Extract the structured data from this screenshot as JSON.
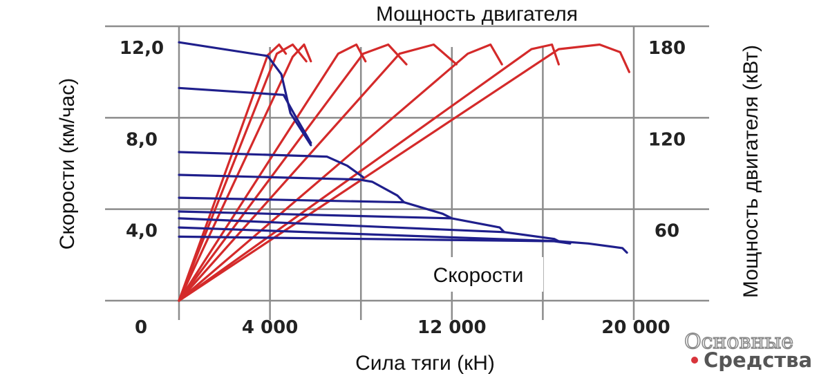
{
  "chart_data": {
    "type": "line",
    "title": "Мощность двигателя",
    "xlabel": "Сила тяги (кН)",
    "ylabel": "Скорости (км/час)",
    "y2label": "Мощность двигателя (кВт)",
    "annotation": "Скорости",
    "x_ticks": [
      {
        "value": 0,
        "label": "0"
      },
      {
        "value": 4000,
        "label": "4 000"
      },
      {
        "value": 12000,
        "label": "12 000"
      },
      {
        "value": 20000,
        "label": "20 000"
      }
    ],
    "x_grid": [
      0,
      4000,
      8000,
      12000,
      16000,
      20000
    ],
    "y_ticks": [
      {
        "value": 4,
        "label": "4,0"
      },
      {
        "value": 8,
        "label": "8,0"
      },
      {
        "value": 12,
        "label": "12,0"
      }
    ],
    "y2_ticks": [
      {
        "value": 60,
        "label": "60"
      },
      {
        "value": 120,
        "label": "120"
      },
      {
        "value": 180,
        "label": "180"
      }
    ],
    "xlim": [
      0,
      20000
    ],
    "ylim": [
      0,
      12
    ],
    "y2lim": [
      0,
      180
    ],
    "grid": true,
    "speed_color": "#1f1f8c",
    "power_color": "#d42a2a",
    "speed_series": [
      {
        "values": [
          [
            0,
            11.3
          ],
          [
            3900,
            10.7
          ],
          [
            4500,
            9.9
          ],
          [
            4900,
            8.2
          ],
          [
            5800,
            6.8
          ]
        ]
      },
      {
        "values": [
          [
            0,
            9.3
          ],
          [
            4600,
            9.0
          ],
          [
            5100,
            8.1
          ],
          [
            5800,
            6.9
          ]
        ]
      },
      {
        "values": [
          [
            0,
            6.5
          ],
          [
            6500,
            6.3
          ],
          [
            7400,
            5.9
          ],
          [
            8100,
            5.4
          ]
        ]
      },
      {
        "values": [
          [
            0,
            5.5
          ],
          [
            7900,
            5.3
          ],
          [
            8500,
            5.2
          ],
          [
            9600,
            4.6
          ],
          [
            9900,
            4.3
          ]
        ]
      },
      {
        "values": [
          [
            0,
            4.5
          ],
          [
            9900,
            4.3
          ],
          [
            11600,
            3.8
          ],
          [
            12000,
            3.6
          ]
        ]
      },
      {
        "values": [
          [
            0,
            3.9
          ],
          [
            12000,
            3.6
          ],
          [
            14100,
            3.2
          ],
          [
            14300,
            3.0
          ]
        ]
      },
      {
        "values": [
          [
            0,
            3.6
          ],
          [
            14300,
            3.0
          ],
          [
            16500,
            2.7
          ],
          [
            16700,
            2.6
          ]
        ]
      },
      {
        "values": [
          [
            0,
            3.2
          ],
          [
            16700,
            2.6
          ],
          [
            18000,
            2.5
          ],
          [
            19500,
            2.3
          ],
          [
            19700,
            2.1
          ]
        ]
      },
      {
        "values": [
          [
            0,
            2.8
          ],
          [
            16500,
            2.6
          ],
          [
            17200,
            2.5
          ]
        ]
      }
    ],
    "power_series": [
      {
        "values": [
          [
            0,
            0
          ],
          [
            3900,
            161
          ],
          [
            4400,
            168
          ],
          [
            4700,
            162
          ]
        ]
      },
      {
        "values": [
          [
            0,
            0
          ],
          [
            4300,
            162
          ],
          [
            5000,
            168
          ],
          [
            5600,
            157
          ]
        ]
      },
      {
        "values": [
          [
            0,
            0
          ],
          [
            5000,
            160
          ],
          [
            5500,
            168
          ],
          [
            5800,
            157
          ]
        ]
      },
      {
        "values": [
          [
            0,
            0
          ],
          [
            7000,
            162
          ],
          [
            7800,
            168
          ],
          [
            8200,
            157
          ]
        ]
      },
      {
        "values": [
          [
            0,
            0
          ],
          [
            8100,
            162
          ],
          [
            9200,
            168
          ],
          [
            10000,
            155
          ]
        ]
      },
      {
        "values": [
          [
            0,
            0
          ],
          [
            9700,
            162
          ],
          [
            11200,
            168
          ],
          [
            12200,
            155
          ]
        ]
      },
      {
        "values": [
          [
            0,
            0
          ],
          [
            12700,
            162
          ],
          [
            13700,
            168
          ],
          [
            14200,
            155
          ]
        ]
      },
      {
        "values": [
          [
            0,
            0
          ],
          [
            15500,
            165
          ],
          [
            16400,
            168
          ],
          [
            16700,
            155
          ]
        ]
      },
      {
        "values": [
          [
            0,
            0
          ],
          [
            16700,
            165
          ],
          [
            18500,
            168
          ],
          [
            19400,
            163
          ],
          [
            19800,
            150
          ]
        ]
      }
    ]
  },
  "watermark": {
    "line1": "Основные",
    "line2": "Средства",
    "dot_color": "#d8343b"
  }
}
